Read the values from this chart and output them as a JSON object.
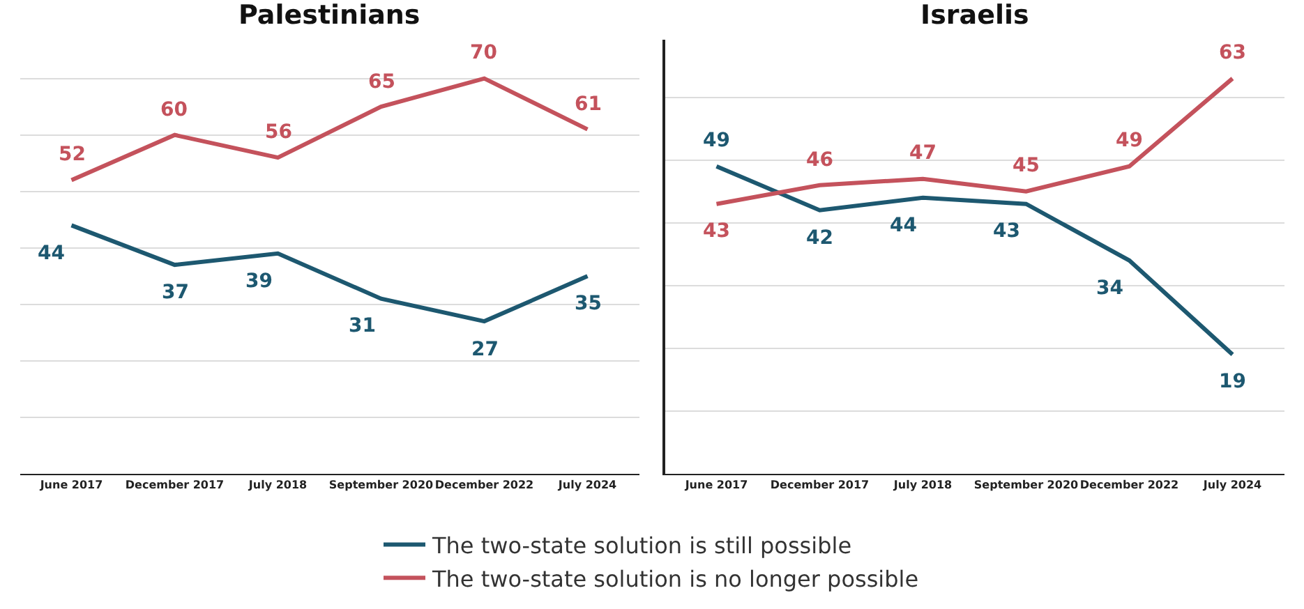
{
  "chart_data": [
    {
      "type": "line",
      "title": "Palestinians",
      "categories": [
        "June 2017",
        "December 2017",
        "July 2018",
        "September 2020",
        "December 2022",
        "July 2024"
      ],
      "series": [
        {
          "name": "The two-state solution is still possible",
          "color": "#1d5870",
          "values": [
            44,
            37,
            39,
            31,
            27,
            35
          ]
        },
        {
          "name": "The two-state solution is no longer possible",
          "color": "#c4525c",
          "values": [
            52,
            60,
            56,
            65,
            70,
            61
          ]
        }
      ],
      "tick_labels": "x",
      "grid": "y",
      "data_labels": true,
      "legend": "bottom",
      "marker": "none",
      "line_style": "solid"
    },
    {
      "type": "line",
      "title": "Israelis",
      "categories": [
        "June 2017",
        "December 2017",
        "July 2018",
        "September 2020",
        "December 2022",
        "July 2024"
      ],
      "series": [
        {
          "name": "The two-state solution is still possible",
          "color": "#1d5870",
          "values": [
            49,
            42,
            44,
            43,
            34,
            19
          ]
        },
        {
          "name": "The two-state solution is no longer possible",
          "color": "#c4525c",
          "values": [
            43,
            46,
            47,
            45,
            49,
            63
          ]
        }
      ],
      "tick_labels": "x",
      "grid": "y",
      "data_labels": true,
      "legend": "bottom",
      "marker": "none",
      "line_style": "solid"
    }
  ]
}
